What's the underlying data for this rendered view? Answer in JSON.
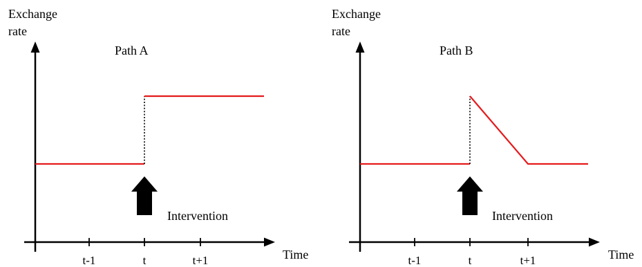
{
  "colors": {
    "path_line": "#e41a1c",
    "axis": "#000000",
    "intervention_arrow": "#000000"
  },
  "panels": [
    {
      "id": "panel-a",
      "y_axis_label_line1": "Exchange",
      "y_axis_label_line2": "rate",
      "title": "Path A",
      "x_axis_label": "Time",
      "ticks": [
        "t-1",
        "t",
        "t+1"
      ],
      "annotation": "Intervention"
    },
    {
      "id": "panel-b",
      "y_axis_label_line1": "Exchange",
      "y_axis_label_line2": "rate",
      "title": "Path B",
      "x_axis_label": "Time",
      "ticks": [
        "t-1",
        "t",
        "t+1"
      ],
      "annotation": "Intervention"
    }
  ]
}
